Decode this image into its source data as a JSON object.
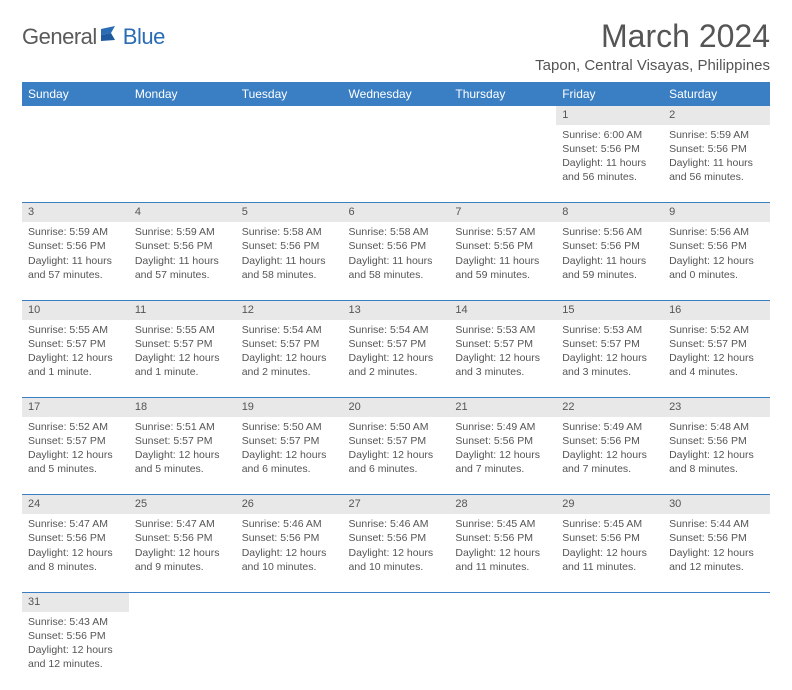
{
  "brand": {
    "general": "General",
    "blue": "Blue"
  },
  "title": "March 2024",
  "location": "Tapon, Central Visayas, Philippines",
  "colors": {
    "header_bg": "#3a7fc4",
    "header_text": "#ffffff",
    "daynum_bg": "#e8e8e8",
    "row_divider": "#3a7fc4",
    "text": "#555555",
    "logo_gray": "#5a5a5a",
    "logo_blue": "#2a6db5"
  },
  "weekdays": [
    "Sunday",
    "Monday",
    "Tuesday",
    "Wednesday",
    "Thursday",
    "Friday",
    "Saturday"
  ],
  "weeks": [
    [
      null,
      null,
      null,
      null,
      null,
      {
        "n": "1",
        "sunrise": "6:00 AM",
        "sunset": "5:56 PM",
        "daylight": "11 hours and 56 minutes."
      },
      {
        "n": "2",
        "sunrise": "5:59 AM",
        "sunset": "5:56 PM",
        "daylight": "11 hours and 56 minutes."
      }
    ],
    [
      {
        "n": "3",
        "sunrise": "5:59 AM",
        "sunset": "5:56 PM",
        "daylight": "11 hours and 57 minutes."
      },
      {
        "n": "4",
        "sunrise": "5:59 AM",
        "sunset": "5:56 PM",
        "daylight": "11 hours and 57 minutes."
      },
      {
        "n": "5",
        "sunrise": "5:58 AM",
        "sunset": "5:56 PM",
        "daylight": "11 hours and 58 minutes."
      },
      {
        "n": "6",
        "sunrise": "5:58 AM",
        "sunset": "5:56 PM",
        "daylight": "11 hours and 58 minutes."
      },
      {
        "n": "7",
        "sunrise": "5:57 AM",
        "sunset": "5:56 PM",
        "daylight": "11 hours and 59 minutes."
      },
      {
        "n": "8",
        "sunrise": "5:56 AM",
        "sunset": "5:56 PM",
        "daylight": "11 hours and 59 minutes."
      },
      {
        "n": "9",
        "sunrise": "5:56 AM",
        "sunset": "5:56 PM",
        "daylight": "12 hours and 0 minutes."
      }
    ],
    [
      {
        "n": "10",
        "sunrise": "5:55 AM",
        "sunset": "5:57 PM",
        "daylight": "12 hours and 1 minute."
      },
      {
        "n": "11",
        "sunrise": "5:55 AM",
        "sunset": "5:57 PM",
        "daylight": "12 hours and 1 minute."
      },
      {
        "n": "12",
        "sunrise": "5:54 AM",
        "sunset": "5:57 PM",
        "daylight": "12 hours and 2 minutes."
      },
      {
        "n": "13",
        "sunrise": "5:54 AM",
        "sunset": "5:57 PM",
        "daylight": "12 hours and 2 minutes."
      },
      {
        "n": "14",
        "sunrise": "5:53 AM",
        "sunset": "5:57 PM",
        "daylight": "12 hours and 3 minutes."
      },
      {
        "n": "15",
        "sunrise": "5:53 AM",
        "sunset": "5:57 PM",
        "daylight": "12 hours and 3 minutes."
      },
      {
        "n": "16",
        "sunrise": "5:52 AM",
        "sunset": "5:57 PM",
        "daylight": "12 hours and 4 minutes."
      }
    ],
    [
      {
        "n": "17",
        "sunrise": "5:52 AM",
        "sunset": "5:57 PM",
        "daylight": "12 hours and 5 minutes."
      },
      {
        "n": "18",
        "sunrise": "5:51 AM",
        "sunset": "5:57 PM",
        "daylight": "12 hours and 5 minutes."
      },
      {
        "n": "19",
        "sunrise": "5:50 AM",
        "sunset": "5:57 PM",
        "daylight": "12 hours and 6 minutes."
      },
      {
        "n": "20",
        "sunrise": "5:50 AM",
        "sunset": "5:57 PM",
        "daylight": "12 hours and 6 minutes."
      },
      {
        "n": "21",
        "sunrise": "5:49 AM",
        "sunset": "5:56 PM",
        "daylight": "12 hours and 7 minutes."
      },
      {
        "n": "22",
        "sunrise": "5:49 AM",
        "sunset": "5:56 PM",
        "daylight": "12 hours and 7 minutes."
      },
      {
        "n": "23",
        "sunrise": "5:48 AM",
        "sunset": "5:56 PM",
        "daylight": "12 hours and 8 minutes."
      }
    ],
    [
      {
        "n": "24",
        "sunrise": "5:47 AM",
        "sunset": "5:56 PM",
        "daylight": "12 hours and 8 minutes."
      },
      {
        "n": "25",
        "sunrise": "5:47 AM",
        "sunset": "5:56 PM",
        "daylight": "12 hours and 9 minutes."
      },
      {
        "n": "26",
        "sunrise": "5:46 AM",
        "sunset": "5:56 PM",
        "daylight": "12 hours and 10 minutes."
      },
      {
        "n": "27",
        "sunrise": "5:46 AM",
        "sunset": "5:56 PM",
        "daylight": "12 hours and 10 minutes."
      },
      {
        "n": "28",
        "sunrise": "5:45 AM",
        "sunset": "5:56 PM",
        "daylight": "12 hours and 11 minutes."
      },
      {
        "n": "29",
        "sunrise": "5:45 AM",
        "sunset": "5:56 PM",
        "daylight": "12 hours and 11 minutes."
      },
      {
        "n": "30",
        "sunrise": "5:44 AM",
        "sunset": "5:56 PM",
        "daylight": "12 hours and 12 minutes."
      }
    ],
    [
      {
        "n": "31",
        "sunrise": "5:43 AM",
        "sunset": "5:56 PM",
        "daylight": "12 hours and 12 minutes."
      },
      null,
      null,
      null,
      null,
      null,
      null
    ]
  ],
  "labels": {
    "sunrise": "Sunrise:",
    "sunset": "Sunset:",
    "daylight": "Daylight:"
  }
}
